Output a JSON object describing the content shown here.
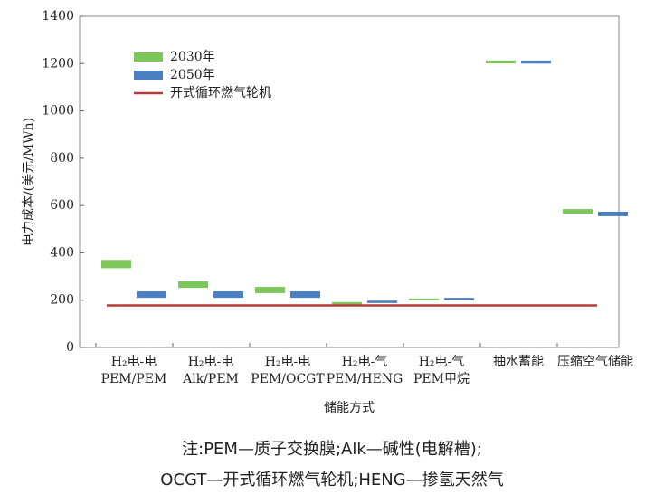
{
  "chart_data": {
    "type": "floating_bar",
    "ylabel": "电力成本/(美元/MWh)",
    "xlabel": "储能方式",
    "categories": [
      [
        "H₂电-电",
        "PEM/PEM"
      ],
      [
        "H₂电-电",
        "Alk/PEM"
      ],
      [
        "H₂电-电",
        "PEM/OCGT"
      ],
      [
        "H₂电-气",
        "PEM/HENG"
      ],
      [
        "H₂电-气",
        "PEM甲烷"
      ],
      [
        "抽水蓄能"
      ],
      [
        "压缩空气储能"
      ]
    ],
    "series": [
      {
        "name": "2030年",
        "color": "#7dc75a",
        "values": [
          [
            335,
            370
          ],
          [
            252,
            280
          ],
          [
            230,
            256
          ],
          [
            181,
            192
          ],
          [
            200,
            207
          ],
          [
            1201,
            1213
          ],
          [
            566,
            585
          ]
        ]
      },
      {
        "name": "2050年",
        "color": "#4a7fc1",
        "values": [
          [
            210,
            237
          ],
          [
            210,
            237
          ],
          [
            210,
            237
          ],
          [
            188,
            198
          ],
          [
            200,
            210
          ],
          [
            1200,
            1213
          ],
          [
            555,
            574
          ]
        ]
      }
    ],
    "reference_line": {
      "name": "开式循环燃气轮机",
      "color": "#b53a3a",
      "value": 178
    },
    "ylim": [
      0,
      1400
    ],
    "yticks": [
      0,
      200,
      400,
      600,
      800,
      1000,
      1200,
      1400
    ],
    "notes": [
      "注:PEM—质子交换膜;Alk—碱性(电解槽);",
      "OCGT—开式循环燃气轮机;HENG—掺氢天然气"
    ]
  }
}
